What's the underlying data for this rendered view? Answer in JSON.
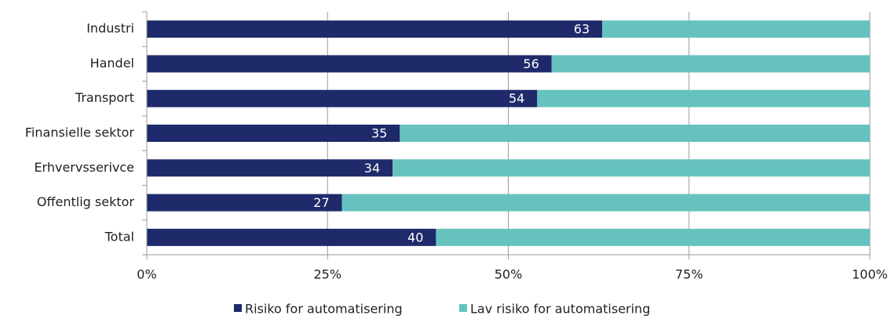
{
  "chart_data": {
    "type": "stacked_bar_horizontal",
    "categories": [
      "Industri",
      "Handel",
      "Transport",
      "Finansielle sektor",
      "Erhvervsserivce",
      "Offentlig sektor",
      "Total"
    ],
    "series": [
      {
        "name": "Risiko for automatisering",
        "color": "#1f2a6b",
        "values": [
          63,
          56,
          54,
          35,
          34,
          27,
          40
        ]
      },
      {
        "name": "Lav risiko for automatisering",
        "color": "#66c2bf",
        "values": [
          37,
          44,
          46,
          65,
          66,
          73,
          60
        ]
      }
    ],
    "xlim": [
      0,
      100
    ],
    "xticks": [
      {
        "value": 0,
        "label": "0%"
      },
      {
        "value": 25,
        "label": "25%"
      },
      {
        "value": 50,
        "label": "50%"
      },
      {
        "value": 75,
        "label": "75%"
      },
      {
        "value": 100,
        "label": "100%"
      }
    ],
    "grid": true,
    "legend": "bottom"
  }
}
